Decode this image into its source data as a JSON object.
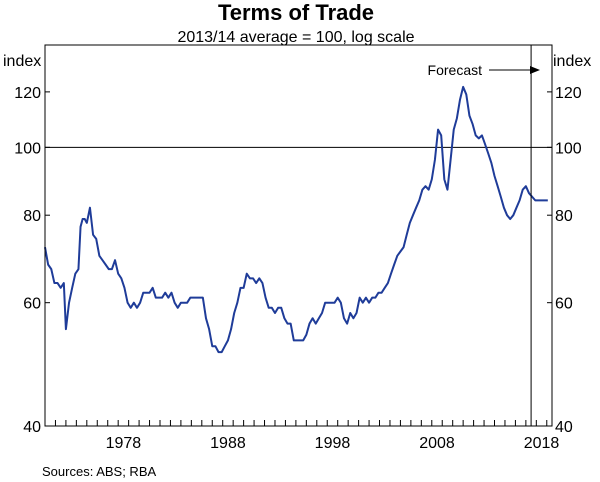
{
  "chart_data": {
    "type": "line",
    "title": "Terms of Trade",
    "subtitle": "2013/14 average = 100, log scale",
    "ylabel_left": "index",
    "ylabel_right": "index",
    "y_scale": "log",
    "ylim": [
      40,
      140
    ],
    "xlim": [
      1971.0,
      2019.5
    ],
    "y_ticks": [
      40,
      60,
      80,
      100,
      120
    ],
    "y_tick_labels": [
      "40",
      "60",
      "80",
      "100",
      "120"
    ],
    "x_ticks": [
      1978,
      1988,
      1998,
      2008,
      2018
    ],
    "x_tick_labels": [
      "1978",
      "1988",
      "1998",
      "2008",
      "2018"
    ],
    "reference_line": 100,
    "forecast_start": 2017.5,
    "annotation": "Forecast",
    "source": "Sources:   ABS; RBA",
    "line_color": "#1f3c99",
    "series": [
      {
        "name": "Terms of Trade",
        "x": [
          1971.0,
          1971.3,
          1971.6,
          1971.9,
          1972.2,
          1972.5,
          1972.8,
          1973.0,
          1973.3,
          1973.6,
          1973.9,
          1974.2,
          1974.4,
          1974.6,
          1974.8,
          1975.0,
          1975.3,
          1975.6,
          1975.9,
          1976.2,
          1976.5,
          1976.8,
          1977.1,
          1977.4,
          1977.7,
          1978.0,
          1978.3,
          1978.6,
          1978.9,
          1979.2,
          1979.5,
          1979.8,
          1980.1,
          1980.4,
          1980.7,
          1981.0,
          1981.3,
          1981.6,
          1981.9,
          1982.2,
          1982.5,
          1982.8,
          1983.1,
          1983.4,
          1983.7,
          1984.0,
          1984.3,
          1984.6,
          1984.9,
          1985.2,
          1985.5,
          1985.8,
          1986.1,
          1986.4,
          1986.7,
          1987.0,
          1987.3,
          1987.6,
          1987.9,
          1988.2,
          1988.5,
          1988.8,
          1989.1,
          1989.4,
          1989.7,
          1990.0,
          1990.3,
          1990.6,
          1990.9,
          1991.2,
          1991.5,
          1991.8,
          1992.1,
          1992.4,
          1992.7,
          1993.0,
          1993.3,
          1993.6,
          1993.9,
          1994.2,
          1994.5,
          1994.8,
          1995.1,
          1995.4,
          1995.7,
          1996.0,
          1996.3,
          1996.6,
          1996.9,
          1997.2,
          1997.5,
          1997.8,
          1998.1,
          1998.4,
          1998.7,
          1999.0,
          1999.3,
          1999.6,
          1999.9,
          2000.2,
          2000.5,
          2000.8,
          2001.1,
          2001.4,
          2001.7,
          2002.0,
          2002.3,
          2002.6,
          2002.9,
          2003.2,
          2003.5,
          2003.8,
          2004.1,
          2004.4,
          2004.7,
          2005.0,
          2005.3,
          2005.6,
          2005.9,
          2006.2,
          2006.5,
          2006.8,
          2007.1,
          2007.4,
          2007.7,
          2008.0,
          2008.3,
          2008.6,
          2008.9,
          2009.2,
          2009.5,
          2009.8,
          2010.1,
          2010.4,
          2010.7,
          2011.0,
          2011.3,
          2011.6,
          2011.9,
          2012.2,
          2012.5,
          2012.8,
          2013.1,
          2013.4,
          2013.7,
          2014.0,
          2014.3,
          2014.6,
          2014.9,
          2015.2,
          2015.5,
          2015.8,
          2016.1,
          2016.4,
          2016.7,
          2017.0,
          2017.3,
          2017.6,
          2017.9,
          2018.2,
          2018.5,
          2018.8,
          2019.1
        ],
        "values": [
          72,
          68,
          67,
          64,
          64,
          63,
          64,
          55,
          60,
          63,
          66,
          67,
          77,
          79,
          79,
          78,
          82,
          75,
          74,
          70,
          69,
          68,
          67,
          67,
          69,
          66,
          65,
          63,
          60,
          59,
          60,
          59,
          60,
          62,
          62,
          62,
          63,
          61,
          61,
          61,
          62,
          61,
          62,
          60,
          59,
          60,
          60,
          60,
          61,
          61,
          61,
          61,
          61,
          57,
          55,
          52,
          52,
          51,
          51,
          52,
          53,
          55,
          58,
          60,
          63,
          63,
          66,
          65,
          65,
          64,
          65,
          64,
          61,
          59,
          59,
          58,
          59,
          59,
          57,
          56,
          56,
          53,
          53,
          53,
          53,
          54,
          56,
          57,
          56,
          57,
          58,
          60,
          60,
          60,
          60,
          61,
          60,
          57,
          56,
          58,
          57,
          58,
          61,
          60,
          61,
          60,
          61,
          61,
          62,
          62,
          63,
          64,
          66,
          68,
          70,
          71,
          72,
          75,
          78,
          80,
          82,
          84,
          87,
          88,
          87,
          90,
          96,
          106,
          104,
          90,
          87,
          96,
          106,
          110,
          117,
          122,
          119,
          111,
          108,
          104,
          103,
          104,
          101,
          98,
          95,
          91,
          88,
          85,
          82,
          80,
          79,
          80,
          82,
          84,
          87,
          88,
          86,
          85,
          84,
          84,
          84,
          84,
          84
        ]
      }
    ]
  }
}
